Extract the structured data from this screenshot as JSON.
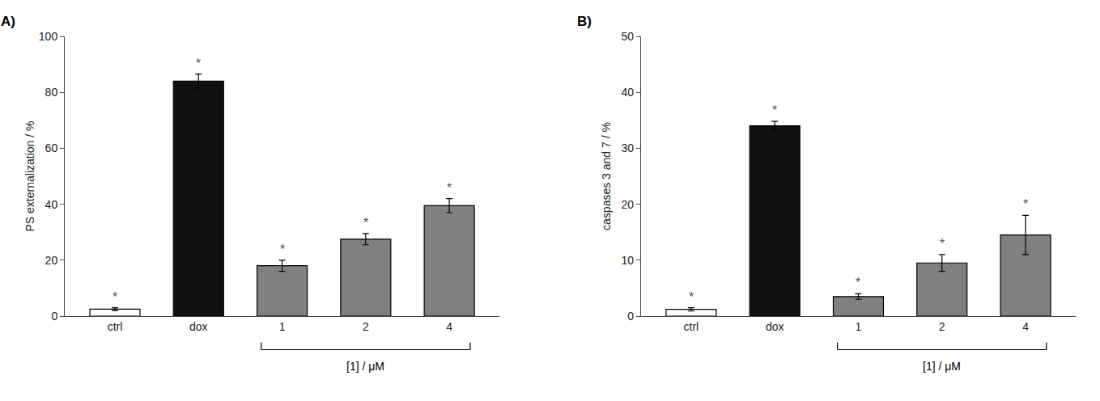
{
  "chart_data": [
    {
      "type": "bar",
      "title": "A)",
      "categories": [
        "ctrl",
        "dox",
        "1",
        "2",
        "4"
      ],
      "values": [
        2.5,
        84.0,
        18.0,
        27.5,
        39.5
      ],
      "errors": [
        0.5,
        2.5,
        2.0,
        2.0,
        2.5
      ],
      "colors": [
        "#ffffff",
        "#111111",
        "#808080",
        "#808080",
        "#808080"
      ],
      "ylabel": "PS externalization / %",
      "ylim": [
        0,
        100
      ],
      "yticks": [
        0,
        20,
        40,
        60,
        80,
        100
      ],
      "grid": false,
      "annotations": [
        {
          "text": "*",
          "category": "ctrl"
        },
        {
          "text": "*",
          "category": "dox"
        },
        {
          "text": "*",
          "category": "1"
        },
        {
          "text": "*",
          "category": "2"
        },
        {
          "text": "*",
          "category": "4"
        },
        {
          "text": "[1] / μM",
          "categories": [
            "1",
            "2",
            "4"
          ]
        }
      ]
    },
    {
      "type": "bar",
      "title": "B)",
      "categories": [
        "ctrl",
        "dox",
        "1",
        "2",
        "4"
      ],
      "values": [
        1.2,
        34.0,
        3.5,
        9.5,
        14.5
      ],
      "errors": [
        0.3,
        0.8,
        0.5,
        1.5,
        3.5
      ],
      "colors": [
        "#ffffff",
        "#111111",
        "#808080",
        "#808080",
        "#808080"
      ],
      "ylabel": "caspases 3 and 7 / %",
      "ylim": [
        0,
        50
      ],
      "yticks": [
        0,
        10,
        20,
        30,
        40,
        50
      ],
      "grid": false,
      "annotations": [
        {
          "text": "*",
          "category": "ctrl"
        },
        {
          "text": "*",
          "category": "dox"
        },
        {
          "text": "*",
          "category": "1"
        },
        {
          "text": "*",
          "category": "2"
        },
        {
          "text": "*",
          "category": "4"
        },
        {
          "text": "[1] / μM",
          "categories": [
            "1",
            "2",
            "4"
          ]
        }
      ]
    }
  ]
}
